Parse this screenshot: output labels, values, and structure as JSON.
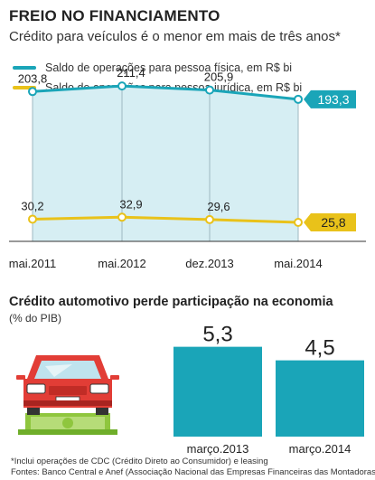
{
  "title": "FREIO NO FINANCIAMENTO",
  "subtitle": "Crédito para veículos é o menor em mais de três anos*",
  "legend": [
    {
      "label": "Saldo de operações para pessoa física, em R$ bi",
      "color": "#1aa5b8"
    },
    {
      "label": "Saldo de operações para pessoa jurídica, em R$ bi",
      "color": "#e9c21a"
    }
  ],
  "colors": {
    "teal": "#1aa5b8",
    "teal_fill": "#d6eef3",
    "yellow": "#e9c21a",
    "car_red": "#e23d36",
    "money_green": "#8fc63e"
  },
  "section2": {
    "title": "Crédito automotivo perde participação na economia",
    "subtitle": "(% do PIB)"
  },
  "footnotes": [
    "*Inclui operações de CDC (Crédito Direto ao Consumidor) e leasing",
    "Fontes: Banco Central e Anef (Associação Nacional das Empresas Financeiras das Montadoras)"
  ],
  "icons": {
    "car": "car-icon",
    "money": "money-bill-icon"
  },
  "chart_data": [
    {
      "type": "line",
      "categories": [
        "mai.2011",
        "mai.2012",
        "dez.2013",
        "mai.2014"
      ],
      "series": [
        {
          "name": "Saldo de operações para pessoa física, em R$ bi",
          "values": [
            203.8,
            211.4,
            205.9,
            193.3
          ],
          "labels": [
            "203,8",
            "211,4",
            "205,9",
            "193,3"
          ]
        },
        {
          "name": "Saldo de operações para pessoa jurídica, em R$ bi",
          "values": [
            30.2,
            32.9,
            29.6,
            25.8
          ],
          "labels": [
            "30,2",
            "32,9",
            "29,6",
            "25,8"
          ]
        }
      ],
      "ylim": [
        0,
        230
      ]
    },
    {
      "type": "bar",
      "categories": [
        "março.2013",
        "março.2014"
      ],
      "values": [
        5.3,
        4.5
      ],
      "labels": [
        "5,3",
        "4,5"
      ],
      "ylim": [
        0,
        5.6
      ]
    }
  ]
}
